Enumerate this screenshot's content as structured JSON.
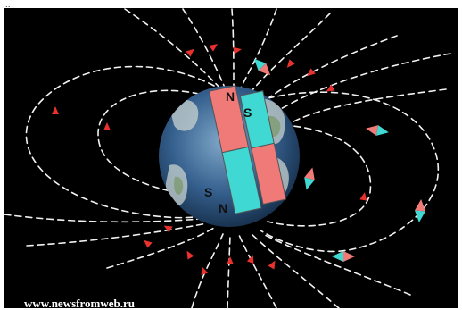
{
  "header": {
    "text": "..."
  },
  "magnets": [
    {
      "pole_top": "N",
      "pole_bottom": "S",
      "top_color": "#f07a78",
      "bottom_color": "#3fd8d2"
    },
    {
      "pole_top": "S",
      "pole_bottom": "N",
      "top_color": "#3fd8d2",
      "bottom_color": "#f07a78"
    }
  ],
  "watermark": {
    "text": "www.newsfromweb.ru"
  },
  "colors": {
    "background": "#000000",
    "field_line": "#f2f2f2",
    "arrow": "#e8322e",
    "compass_red": "#f07a78",
    "compass_cyan": "#3fd8d2"
  }
}
